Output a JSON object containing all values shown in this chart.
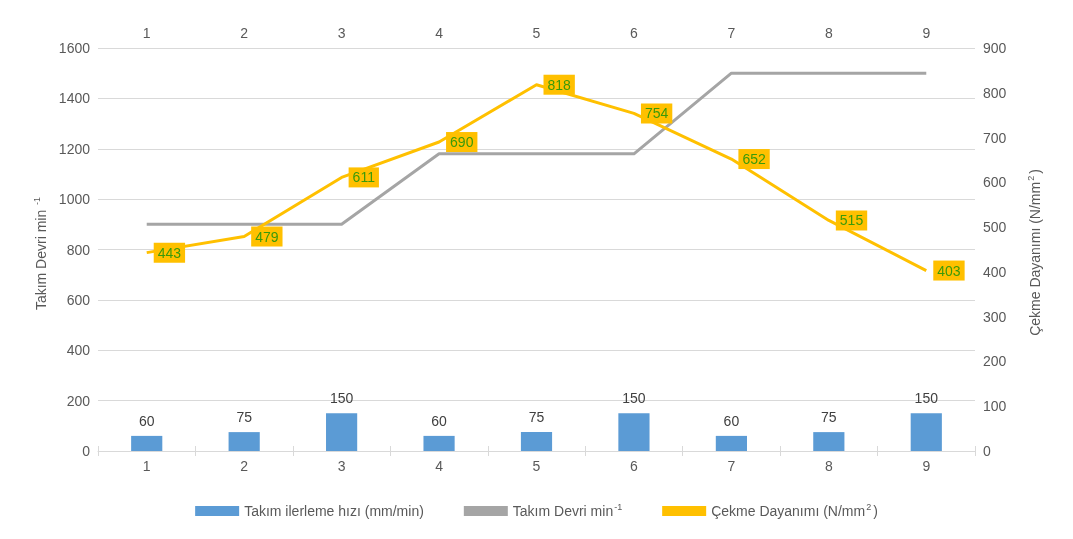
{
  "chart_data": {
    "type": "bar",
    "categories": [
      "1",
      "2",
      "3",
      "4",
      "5",
      "6",
      "7",
      "8",
      "9"
    ],
    "ylabel": "Takım Devri min $^{-1}$",
    "y2label": "Çekme Dayanımı (N/mm$^{2}$)",
    "ylim": [
      0,
      1600
    ],
    "yticks": [
      0,
      200,
      400,
      600,
      800,
      1000,
      1200,
      1400,
      1600
    ],
    "y2lim": [
      0,
      900
    ],
    "y2ticks": [
      0,
      100,
      200,
      300,
      400,
      500,
      600,
      700,
      800,
      900
    ],
    "series": [
      {
        "name": "Takım ilerleme hızı (mm/min)",
        "color": "#5b9bd5",
        "values": [
          60,
          75,
          150,
          60,
          75,
          150,
          60,
          75,
          150
        ],
        "value_labels": [
          "60",
          "75",
          "150",
          "60",
          "75",
          "150",
          "60",
          "75",
          "150"
        ]
      },
      {
        "name": "Takım Devri min$^{-1}$",
        "type": "line",
        "color": "#a5a5a5",
        "values": [
          900,
          900,
          900,
          1180,
          1180,
          1180,
          1500,
          1500,
          1500
        ]
      },
      {
        "name": "Çekme Dayanımı (N/mm$^{2}$)",
        "type": "line",
        "axis": "y2",
        "color": "#ffc000",
        "values": [
          443,
          479,
          611,
          690,
          818,
          754,
          652,
          515,
          403
        ],
        "value_labels": [
          "443",
          "479",
          "611",
          "690",
          "818",
          "754",
          "652",
          "515",
          "403"
        ]
      }
    ],
    "grid": "y",
    "legend": "bottom"
  }
}
